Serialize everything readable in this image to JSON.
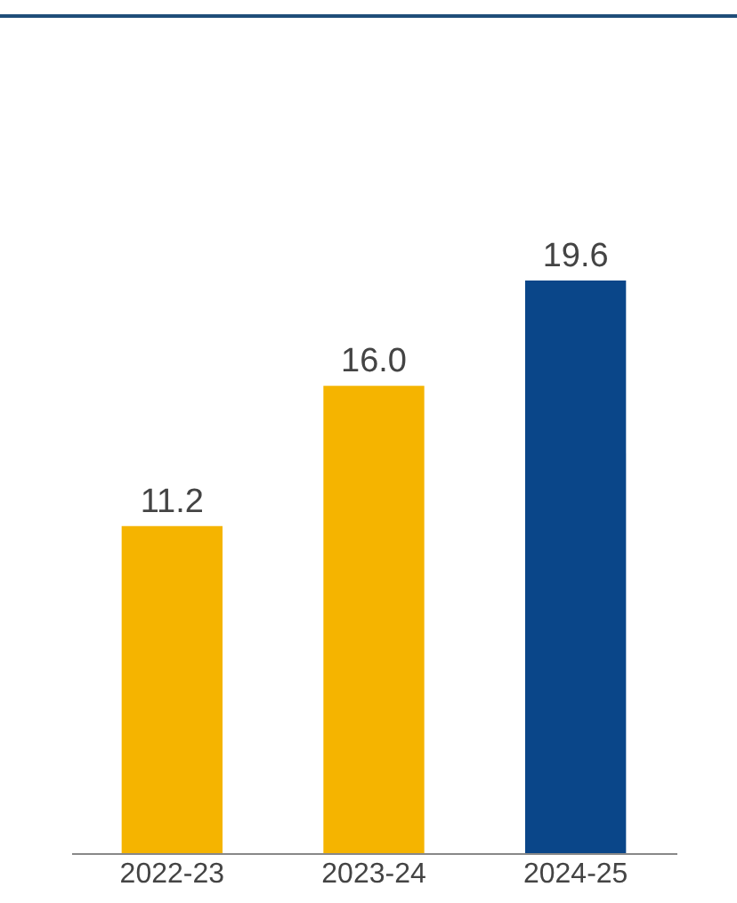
{
  "chart_data": {
    "type": "bar",
    "categories": [
      "2022-23",
      "2023-24",
      "2024-25"
    ],
    "values": [
      11.2,
      16.0,
      19.6
    ],
    "colors": [
      "#f5b400",
      "#f5b400",
      "#0a4689"
    ],
    "value_labels": [
      "11.2",
      "16.0",
      "19.6"
    ]
  }
}
